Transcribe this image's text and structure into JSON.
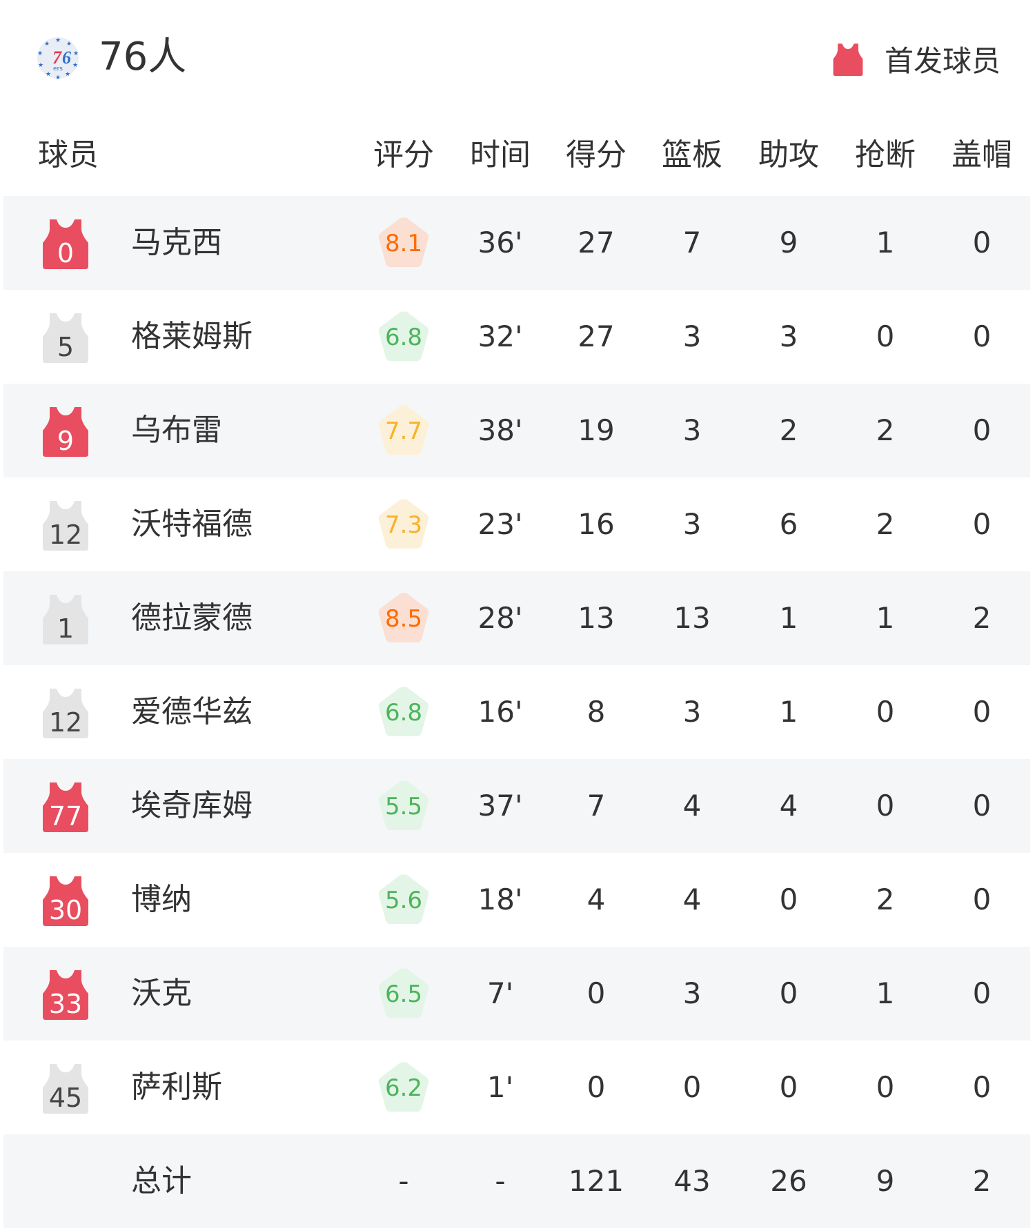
{
  "header": {
    "team_name": "76人",
    "legend_label": "首发球员",
    "logo_text": "76ers"
  },
  "colors": {
    "starter": "#e84e5f",
    "bench": "#e4e4e4",
    "row_alt": "#f5f6f8",
    "rating_high_bg": "#fadfd2",
    "rating_high_text": "#ff6a00",
    "rating_mid_bg": "#fdf0d8",
    "rating_mid_text": "#f7b228",
    "rating_low_bg": "#e3f5e6",
    "rating_low_text": "#4db45c"
  },
  "columns": {
    "player": "球员",
    "rating": "评分",
    "time": "时间",
    "points": "得分",
    "rebounds": "篮板",
    "assists": "助攻",
    "steals": "抢断",
    "blocks": "盖帽"
  },
  "players": [
    {
      "number": "0",
      "starter": true,
      "name": "马克西",
      "rating": "8.1",
      "time": "36'",
      "points": "27",
      "rebounds": "7",
      "assists": "9",
      "steals": "1",
      "blocks": "0"
    },
    {
      "number": "5",
      "starter": false,
      "name": "格莱姆斯",
      "rating": "6.8",
      "time": "32'",
      "points": "27",
      "rebounds": "3",
      "assists": "3",
      "steals": "0",
      "blocks": "0"
    },
    {
      "number": "9",
      "starter": true,
      "name": "乌布雷",
      "rating": "7.7",
      "time": "38'",
      "points": "19",
      "rebounds": "3",
      "assists": "2",
      "steals": "2",
      "blocks": "0"
    },
    {
      "number": "12",
      "starter": false,
      "name": "沃特福德",
      "rating": "7.3",
      "time": "23'",
      "points": "16",
      "rebounds": "3",
      "assists": "6",
      "steals": "2",
      "blocks": "0"
    },
    {
      "number": "1",
      "starter": false,
      "name": "德拉蒙德",
      "rating": "8.5",
      "time": "28'",
      "points": "13",
      "rebounds": "13",
      "assists": "1",
      "steals": "1",
      "blocks": "2"
    },
    {
      "number": "12",
      "starter": false,
      "name": "爱德华兹",
      "rating": "6.8",
      "time": "16'",
      "points": "8",
      "rebounds": "3",
      "assists": "1",
      "steals": "0",
      "blocks": "0"
    },
    {
      "number": "77",
      "starter": true,
      "name": "埃奇库姆",
      "rating": "5.5",
      "time": "37'",
      "points": "7",
      "rebounds": "4",
      "assists": "4",
      "steals": "0",
      "blocks": "0"
    },
    {
      "number": "30",
      "starter": true,
      "name": "博纳",
      "rating": "5.6",
      "time": "18'",
      "points": "4",
      "rebounds": "4",
      "assists": "0",
      "steals": "2",
      "blocks": "0"
    },
    {
      "number": "33",
      "starter": true,
      "name": "沃克",
      "rating": "6.5",
      "time": "7'",
      "points": "0",
      "rebounds": "3",
      "assists": "0",
      "steals": "1",
      "blocks": "0"
    },
    {
      "number": "45",
      "starter": false,
      "name": "萨利斯",
      "rating": "6.2",
      "time": "1'",
      "points": "0",
      "rebounds": "0",
      "assists": "0",
      "steals": "0",
      "blocks": "0"
    }
  ],
  "totals": {
    "label": "总计",
    "rating": "-",
    "time": "-",
    "points": "121",
    "rebounds": "43",
    "assists": "26",
    "steals": "9",
    "blocks": "2"
  }
}
